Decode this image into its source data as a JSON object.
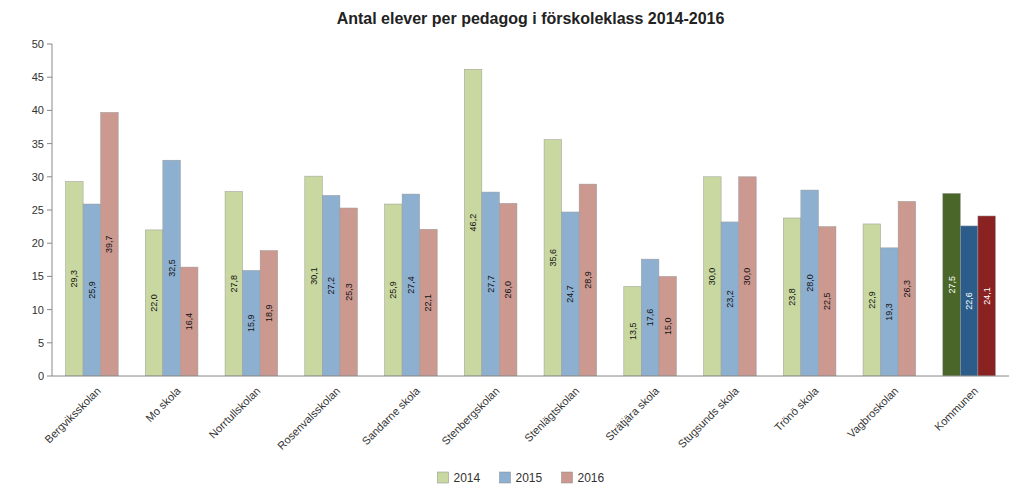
{
  "chart_data": {
    "type": "bar",
    "title": "Antal elever per pedagog i förskoleklass 2014-2016",
    "categories": [
      "Bergviksskolan",
      "Mo skola",
      "Norrtullskolan",
      "Rosenvalsskolan",
      "Sandarne skola",
      "Stenbergskolan",
      "Stenlägtskolan",
      "Strätjära skola",
      "Stugsunds skola",
      "Trönö skola",
      "Vagbroskolan",
      "Kommunen"
    ],
    "series": [
      {
        "name": "2014",
        "color": "#c8d8a0",
        "colors": [
          "#c8d8a0",
          "#c8d8a0",
          "#c8d8a0",
          "#c8d8a0",
          "#c8d8a0",
          "#c8d8a0",
          "#c8d8a0",
          "#c8d8a0",
          "#c8d8a0",
          "#c8d8a0",
          "#c8d8a0",
          "#4a6628"
        ],
        "values": [
          29.3,
          22.0,
          27.8,
          30.1,
          25.9,
          46.2,
          35.6,
          13.5,
          30.0,
          23.8,
          22.9,
          27.5
        ],
        "value_labels": [
          "29,3",
          "22,0",
          "27,8",
          "30,1",
          "25,9",
          "46,2",
          "35,6",
          "13,5",
          "30,0",
          "23,8",
          "22,9",
          "27,5"
        ]
      },
      {
        "name": "2015",
        "color": "#8db0d0",
        "colors": [
          "#8db0d0",
          "#8db0d0",
          "#8db0d0",
          "#8db0d0",
          "#8db0d0",
          "#8db0d0",
          "#8db0d0",
          "#8db0d0",
          "#8db0d0",
          "#8db0d0",
          "#8db0d0",
          "#2b5c8a"
        ],
        "values": [
          25.9,
          32.5,
          15.9,
          27.2,
          27.4,
          27.7,
          24.7,
          17.6,
          23.2,
          28.0,
          19.3,
          22.6
        ],
        "value_labels": [
          "25,9",
          "32,5",
          "15,9",
          "27,2",
          "27,4",
          "27,7",
          "24,7",
          "17,6",
          "23,2",
          "28,0",
          "19,3",
          "22,6"
        ]
      },
      {
        "name": "2016",
        "color": "#cc9990",
        "colors": [
          "#cc9990",
          "#cc9990",
          "#cc9990",
          "#cc9990",
          "#cc9990",
          "#cc9990",
          "#cc9990",
          "#cc9990",
          "#cc9990",
          "#cc9990",
          "#cc9990",
          "#8b2222"
        ],
        "values": [
          39.7,
          16.4,
          18.9,
          25.3,
          22.1,
          26.0,
          28.9,
          15.0,
          30.0,
          22.5,
          26.3,
          24.1
        ],
        "value_labels": [
          "39,7",
          "16,4",
          "18,9",
          "25,3",
          "22,1",
          "26,0",
          "28,9",
          "15,0",
          "30,0",
          "22,5",
          "26,3",
          "24,1"
        ]
      }
    ],
    "ylim": [
      0,
      50
    ],
    "yticks": [
      0,
      5,
      10,
      15,
      20,
      25,
      30,
      35,
      40,
      45,
      50
    ],
    "grid": false,
    "legend": "bottom",
    "data_labels": true
  }
}
